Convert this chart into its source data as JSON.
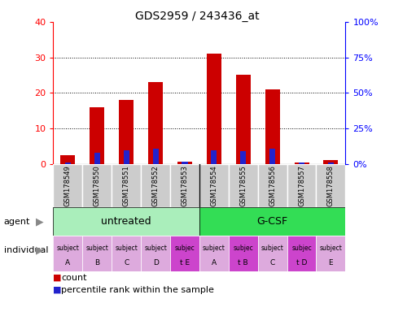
{
  "title": "GDS2959 / 243436_at",
  "samples": [
    "GSM178549",
    "GSM178550",
    "GSM178551",
    "GSM178552",
    "GSM178553",
    "GSM178554",
    "GSM178555",
    "GSM178556",
    "GSM178557",
    "GSM178558"
  ],
  "counts": [
    2.5,
    16.0,
    18.0,
    23.0,
    0.5,
    31.0,
    25.0,
    21.0,
    0.3,
    1.0
  ],
  "percentile_ranks": [
    1.2,
    7.5,
    9.5,
    10.5,
    1.5,
    9.5,
    9.0,
    10.5,
    0.8,
    1.0
  ],
  "ylim_left": [
    0,
    40
  ],
  "ylim_right": [
    0,
    100
  ],
  "yticks_left": [
    0,
    10,
    20,
    30,
    40
  ],
  "yticks_right": [
    0,
    25,
    50,
    75,
    100
  ],
  "ytick_labels_right": [
    "0%",
    "25%",
    "50%",
    "75%",
    "100%"
  ],
  "bar_color": "#cc0000",
  "percentile_color": "#2222cc",
  "agent_groups": [
    {
      "label": "untreated",
      "start": 0,
      "end": 5,
      "color": "#aaeebb"
    },
    {
      "label": "G-CSF",
      "start": 5,
      "end": 10,
      "color": "#33dd55"
    }
  ],
  "individual_labels": [
    [
      "subject",
      "A"
    ],
    [
      "subject",
      "B"
    ],
    [
      "subject",
      "C"
    ],
    [
      "subject",
      "D"
    ],
    [
      "subjec",
      "t E"
    ],
    [
      "subject",
      "A"
    ],
    [
      "subjec",
      "t B"
    ],
    [
      "subject",
      "C"
    ],
    [
      "subjec",
      "t D"
    ],
    [
      "subject",
      "E"
    ]
  ],
  "individual_highlight": [
    false,
    false,
    false,
    false,
    true,
    false,
    true,
    false,
    true,
    false
  ],
  "individual_color_normal": "#ddaadd",
  "individual_color_highlight": "#cc44cc",
  "sample_bg_color": "#cccccc",
  "agent_label": "agent",
  "individual_label": "individual",
  "legend_count_color": "#cc0000",
  "legend_percentile_color": "#2222cc",
  "arrow_color": "#888888",
  "fig_bg": "#ffffff"
}
